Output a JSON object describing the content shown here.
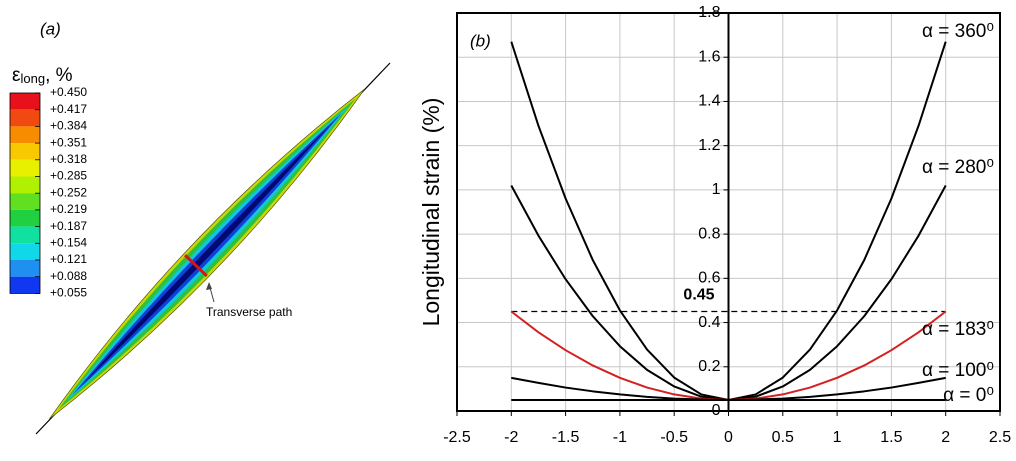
{
  "figure_a": {
    "label": "(a)",
    "colorbar": {
      "symbol": "ε",
      "subscript": "long",
      "unit": ", %",
      "ticks": [
        {
          "value": 0.45,
          "label": "+0.450"
        },
        {
          "value": 0.417,
          "label": "+0.417"
        },
        {
          "value": 0.384,
          "label": "+0.384"
        },
        {
          "value": 0.351,
          "label": "+0.351"
        },
        {
          "value": 0.318,
          "label": "+0.318"
        },
        {
          "value": 0.285,
          "label": "+0.285"
        },
        {
          "value": 0.252,
          "label": "+0.252"
        },
        {
          "value": 0.219,
          "label": "+0.219"
        },
        {
          "value": 0.187,
          "label": "+0.187"
        },
        {
          "value": 0.154,
          "label": "+0.154"
        },
        {
          "value": 0.121,
          "label": "+0.121"
        },
        {
          "value": 0.088,
          "label": "+0.088"
        },
        {
          "value": 0.055,
          "label": "+0.055"
        }
      ],
      "colors": [
        "#e8101a",
        "#f04a10",
        "#f88c00",
        "#f8c800",
        "#e8f000",
        "#b0f000",
        "#60e020",
        "#20d040",
        "#10e0a0",
        "#10d8e8",
        "#2090f0",
        "#1038f0"
      ]
    },
    "annotation": "Transverse path"
  },
  "chart_data": {
    "type": "line",
    "label": "(b)",
    "y_label": "Longitudinal strain (%)",
    "x": [
      -2,
      -1.75,
      -1.5,
      -1.25,
      -1,
      -0.75,
      -0.5,
      -0.25,
      0,
      0.25,
      0.5,
      0.75,
      1,
      1.25,
      1.5,
      1.75,
      2
    ],
    "series": [
      {
        "name": "α = 360⁰",
        "color": "#000000",
        "values": [
          1.67,
          1.29,
          0.961,
          0.683,
          0.455,
          0.278,
          0.151,
          0.075,
          0.05,
          0.075,
          0.151,
          0.278,
          0.455,
          0.683,
          0.961,
          1.29,
          1.67
        ]
      },
      {
        "name": "α = 280⁰",
        "color": "#000000",
        "values": [
          1.02,
          0.793,
          0.596,
          0.429,
          0.293,
          0.186,
          0.111,
          0.065,
          0.05,
          0.065,
          0.111,
          0.186,
          0.293,
          0.429,
          0.596,
          0.793,
          1.02
        ]
      },
      {
        "name": "α = 183⁰",
        "color": "#d42020",
        "values": [
          0.45,
          0.356,
          0.275,
          0.206,
          0.15,
          0.106,
          0.075,
          0.056,
          0.05,
          0.056,
          0.075,
          0.106,
          0.15,
          0.206,
          0.275,
          0.356,
          0.45
        ]
      },
      {
        "name": "α = 100⁰",
        "color": "#000000",
        "values": [
          0.15,
          0.127,
          0.106,
          0.089,
          0.075,
          0.064,
          0.056,
          0.052,
          0.05,
          0.052,
          0.056,
          0.064,
          0.075,
          0.089,
          0.106,
          0.127,
          0.15
        ]
      },
      {
        "name": "α = 0⁰",
        "color": "#000000",
        "values": [
          0.05,
          0.05,
          0.05,
          0.05,
          0.05,
          0.05,
          0.05,
          0.05,
          0.05,
          0.05,
          0.05,
          0.05,
          0.05,
          0.05,
          0.05,
          0.05,
          0.05
        ]
      }
    ],
    "reference_line": {
      "value": 0.45,
      "style": "dashed"
    },
    "xlim": [
      -2.5,
      2.5
    ],
    "xticks": [
      -2.5,
      -2,
      -1.5,
      -1,
      -0.5,
      0,
      0.5,
      1,
      1.5,
      2,
      2.5
    ],
    "ylim": [
      0,
      1.8
    ],
    "yticks": [
      0,
      0.2,
      0.4,
      0.6,
      0.8,
      1,
      1.2,
      1.4,
      1.6,
      1.8
    ],
    "grid": true
  }
}
